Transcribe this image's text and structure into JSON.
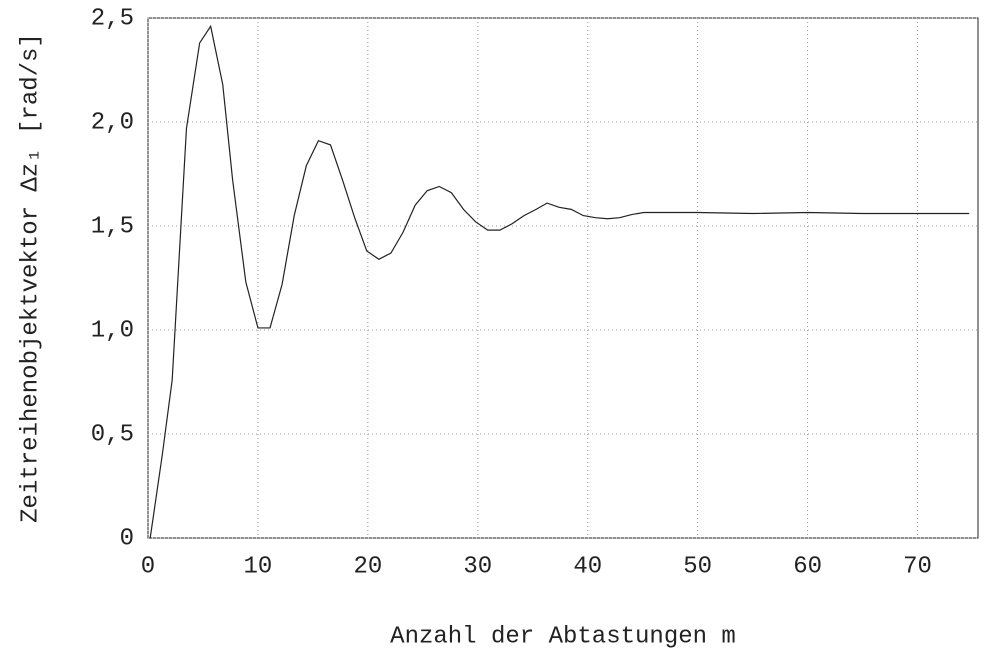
{
  "chart_data": {
    "type": "line",
    "x_label": "Anzahl der Abtastungen m",
    "y_label": "Zeitreihenobjektvektor Δz₁ [rad/s]",
    "x": [
      0.2,
      1.3,
      2.2,
      3.5,
      4.7,
      5.7,
      6.8,
      7.7,
      8.9,
      10.0,
      11.1,
      12.2,
      13.3,
      14.4,
      15.5,
      16.6,
      17.7,
      18.8,
      19.9,
      21.0,
      22.1,
      23.2,
      24.3,
      25.4,
      26.5,
      27.6,
      28.7,
      29.8,
      30.9,
      32.0,
      33.1,
      34.2,
      35.3,
      36.3,
      37.4,
      38.5,
      39.6,
      40.7,
      41.8,
      42.9,
      44.0,
      45.1,
      50.0,
      55.0,
      60.0,
      65.0,
      70.0,
      74.7
    ],
    "series": [
      {
        "name": "Δz1",
        "color": "#222222",
        "values": [
          0,
          0.4,
          0.76,
          1.97,
          2.38,
          2.46,
          2.18,
          1.72,
          1.23,
          1.01,
          1.01,
          1.22,
          1.55,
          1.79,
          1.91,
          1.89,
          1.72,
          1.54,
          1.38,
          1.34,
          1.37,
          1.47,
          1.6,
          1.67,
          1.69,
          1.66,
          1.58,
          1.52,
          1.48,
          1.48,
          1.51,
          1.55,
          1.58,
          1.61,
          1.59,
          1.58,
          1.55,
          1.54,
          1.535,
          1.54,
          1.555,
          1.565,
          1.565,
          1.56,
          1.565,
          1.56,
          1.56,
          1.56
        ]
      }
    ],
    "xlim": [
      0,
      75.5
    ],
    "ylim": [
      0,
      2.5
    ],
    "xticks": [
      0,
      10,
      20,
      30,
      40,
      50,
      60,
      70
    ],
    "yticks": [
      0,
      {
        "value": 0.5,
        "label": "0,5"
      },
      {
        "value": 1.0,
        "label": "1,0"
      },
      {
        "value": 1.5,
        "label": "1,5"
      },
      {
        "value": 2.0,
        "label": "2,0"
      },
      {
        "value": 2.5,
        "label": "2,5"
      }
    ],
    "grid": true
  }
}
